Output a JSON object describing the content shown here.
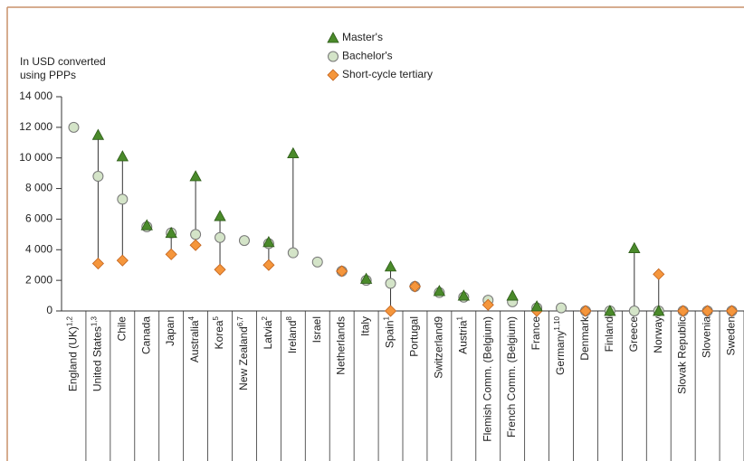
{
  "chart_data": {
    "type": "dot",
    "y_label_lines": [
      "In USD converted",
      "using PPPs"
    ],
    "categories": [
      "England (UK)",
      "United States",
      "Chile",
      "Canada",
      "Japan",
      "Australia",
      "Korea",
      "New Zealand",
      "Latvia",
      "Ireland",
      "Israel",
      "Netherlands",
      "Italy",
      "Spain",
      "Portugal",
      "Switzerland9",
      "Austria",
      "Flemish Comm. (Belgium)",
      "French Comm. (Belgium)",
      "France",
      "Germany",
      "Denmark",
      "Finland",
      "Greece",
      "Norway",
      "Slovak Republic",
      "Slovenia",
      "Sweden"
    ],
    "category_notes": [
      "1,2",
      "1,3",
      null,
      null,
      null,
      "4",
      "5",
      "6,7",
      "2",
      "8",
      null,
      null,
      null,
      "1",
      null,
      null,
      "1",
      null,
      null,
      null,
      "1,10",
      null,
      null,
      null,
      null,
      null,
      null,
      null
    ],
    "series": [
      {
        "name": "Master's",
        "color": "#4a8a2a",
        "marker": "triangle",
        "values": [
          null,
          11500,
          10100,
          5600,
          5100,
          8800,
          6200,
          null,
          4500,
          10300,
          null,
          null,
          2100,
          2900,
          null,
          1300,
          1000,
          null,
          1000,
          300,
          null,
          null,
          0,
          4100,
          0,
          null,
          null,
          null
        ]
      },
      {
        "name": "Bachelor's",
        "color": "#d4e4c8",
        "marker": "circle",
        "values": [
          12000,
          8800,
          7300,
          5500,
          5100,
          5000,
          4800,
          4600,
          4400,
          3800,
          3200,
          2600,
          2000,
          1800,
          1600,
          1200,
          900,
          700,
          600,
          200,
          200,
          0,
          0,
          0,
          0,
          0,
          0,
          0
        ]
      },
      {
        "name": "Short-cycle tertiary",
        "color": "#f5963c",
        "marker": "diamond",
        "values": [
          null,
          3100,
          3300,
          null,
          3700,
          4300,
          2700,
          null,
          3000,
          null,
          null,
          2600,
          null,
          0,
          1600,
          null,
          null,
          400,
          null,
          0,
          null,
          0,
          null,
          null,
          2400,
          0,
          0,
          0
        ]
      }
    ],
    "ylim": [
      0,
      14000
    ],
    "yticks": [
      0,
      {
        "value": 2000,
        "label": "2 000"
      },
      {
        "value": 4000,
        "label": "4 000"
      },
      {
        "value": 6000,
        "label": "6 000"
      },
      {
        "value": 8000,
        "label": "8 000"
      },
      {
        "value": 10000,
        "label": "10 000"
      },
      {
        "value": 12000,
        "label": "12 000"
      },
      {
        "value": 14000,
        "label": "14 000"
      }
    ],
    "grid": false
  }
}
